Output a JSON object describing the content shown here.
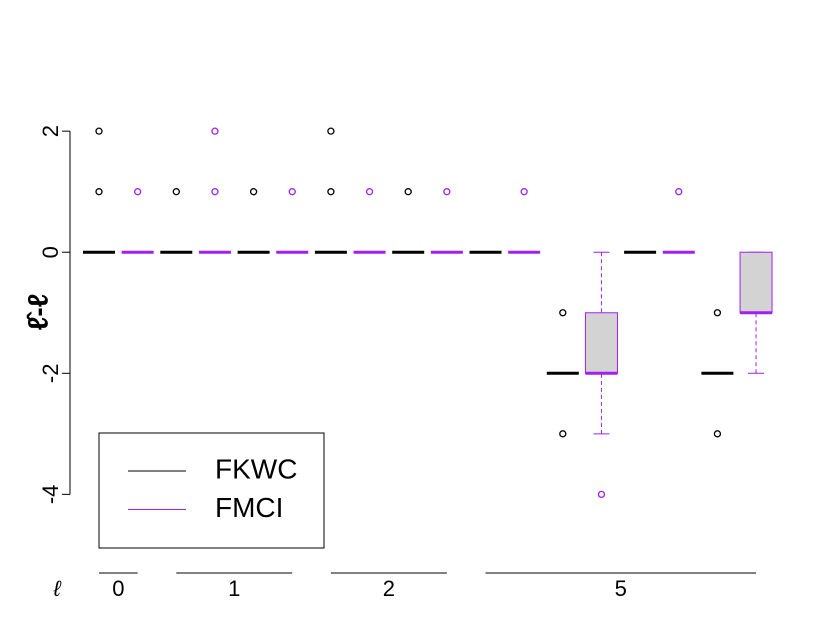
{
  "chart_data": {
    "type": "box",
    "ylabel": "ℓ̂-ℓ",
    "xlabel": "ℓ",
    "categories": [
      "0",
      "1",
      null,
      "2",
      null,
      "5",
      null,
      null,
      null
    ],
    "ylim": [
      -5.2,
      2.3
    ],
    "yticks": [
      -4,
      -2,
      0,
      2
    ],
    "legend": "bottomleft",
    "series": [
      {
        "name": "FKWC",
        "color": "#000000",
        "boxes": [
          {
            "min": 0,
            "q1": 0,
            "median": 0,
            "q3": 0,
            "max": 0,
            "outliers": [
              1,
              2
            ]
          },
          {
            "min": 0,
            "q1": 0,
            "median": 0,
            "q3": 0,
            "max": 0,
            "outliers": [
              1
            ]
          },
          {
            "min": 0,
            "q1": 0,
            "median": 0,
            "q3": 0,
            "max": 0,
            "outliers": [
              1
            ]
          },
          {
            "min": 0,
            "q1": 0,
            "median": 0,
            "q3": 0,
            "max": 0,
            "outliers": [
              1,
              2
            ]
          },
          {
            "min": 0,
            "q1": 0,
            "median": 0,
            "q3": 0,
            "max": 0,
            "outliers": [
              1
            ]
          },
          {
            "min": 0,
            "q1": 0,
            "median": 0,
            "q3": 0,
            "max": 0,
            "outliers": []
          },
          {
            "min": -2,
            "q1": -2,
            "median": -2,
            "q3": -2,
            "max": -2,
            "outliers": [
              -1,
              -3
            ]
          },
          {
            "min": 0,
            "q1": 0,
            "median": 0,
            "q3": 0,
            "max": 0,
            "outliers": []
          },
          {
            "min": -2,
            "q1": -2,
            "median": -2,
            "q3": -2,
            "max": -2,
            "outliers": [
              -1,
              -3
            ]
          }
        ]
      },
      {
        "name": "FMCI",
        "color": "#a020f0",
        "boxes": [
          {
            "min": 0,
            "q1": 0,
            "median": 0,
            "q3": 0,
            "max": 0,
            "outliers": [
              1
            ]
          },
          {
            "min": 0,
            "q1": 0,
            "median": 0,
            "q3": 0,
            "max": 0,
            "outliers": [
              1,
              2
            ]
          },
          {
            "min": 0,
            "q1": 0,
            "median": 0,
            "q3": 0,
            "max": 0,
            "outliers": [
              1
            ]
          },
          {
            "min": 0,
            "q1": 0,
            "median": 0,
            "q3": 0,
            "max": 0,
            "outliers": [
              1
            ]
          },
          {
            "min": 0,
            "q1": 0,
            "median": 0,
            "q3": 0,
            "max": 0,
            "outliers": [
              1
            ]
          },
          {
            "min": 0,
            "q1": 0,
            "median": 0,
            "q3": 0,
            "max": 0,
            "outliers": [
              1
            ]
          },
          {
            "min": -3,
            "q1": -2,
            "median": -2,
            "q3": -1,
            "max": 0,
            "outliers": [
              -4
            ]
          },
          {
            "min": 0,
            "q1": 0,
            "median": 0,
            "q3": 0,
            "max": 0,
            "outliers": [
              1
            ]
          },
          {
            "min": -2,
            "q1": -1,
            "median": -1,
            "q3": 0,
            "max": 0,
            "outliers": []
          }
        ]
      }
    ]
  }
}
